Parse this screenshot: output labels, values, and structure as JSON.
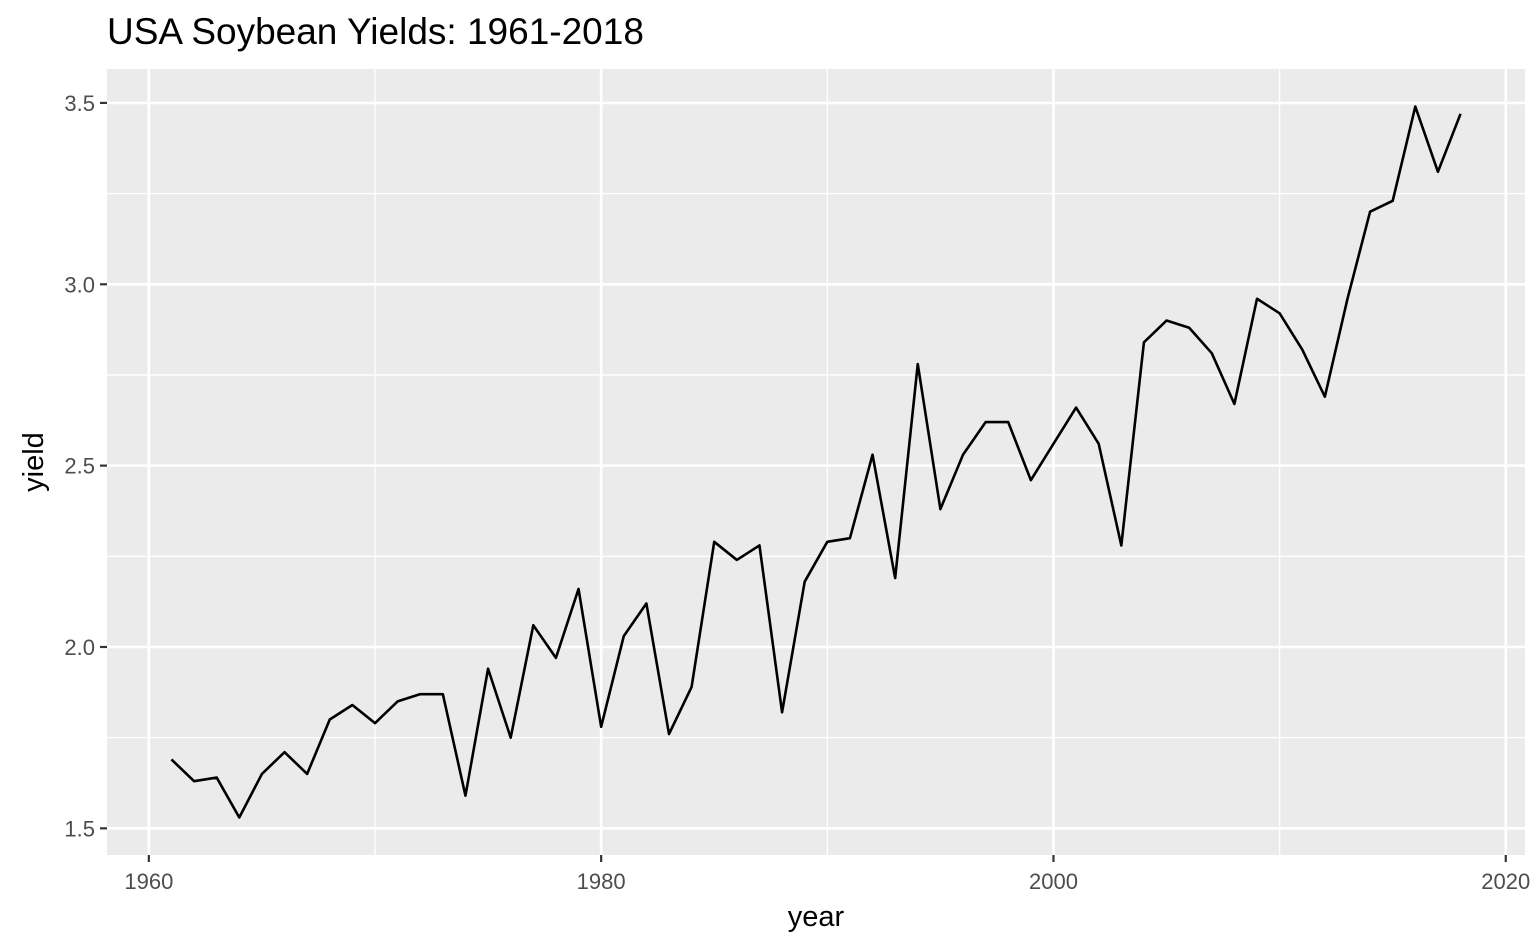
{
  "chart_data": {
    "type": "line",
    "title": "USA Soybean Yields: 1961-2018",
    "xlabel": "year",
    "ylabel": "yield",
    "xlim": [
      1958.15,
      2020.85
    ],
    "ylim": [
      1.4265,
      3.5935
    ],
    "x_ticks": [
      1960,
      1980,
      2000,
      2020
    ],
    "x_tick_labels": [
      "1960",
      "1980",
      "2000",
      "2020"
    ],
    "x_minor_ticks": [
      1970,
      1990,
      2010
    ],
    "y_ticks": [
      1.5,
      2.0,
      2.5,
      3.0,
      3.5
    ],
    "y_tick_labels": [
      "1.5",
      "2.0",
      "2.5",
      "3.0",
      "3.5"
    ],
    "y_minor_ticks": [
      1.75,
      2.25,
      2.75,
      3.25
    ],
    "grid": true,
    "legend": "none",
    "colors": {
      "panel_background": "#ebebeb",
      "grid_line": "#ffffff",
      "series_line": "#000000",
      "tick_label": "#4d4d4d",
      "tick_mark": "#333333"
    },
    "series": [
      {
        "x": [
          1961,
          1962,
          1963,
          1964,
          1965,
          1966,
          1967,
          1968,
          1969,
          1970,
          1971,
          1972,
          1973,
          1974,
          1975,
          1976,
          1977,
          1978,
          1979,
          1980,
          1981,
          1982,
          1983,
          1984,
          1985,
          1986,
          1987,
          1988,
          1989,
          1990,
          1991,
          1992,
          1993,
          1994,
          1995,
          1996,
          1997,
          1998,
          1999,
          2000,
          2001,
          2002,
          2003,
          2004,
          2005,
          2006,
          2007,
          2008,
          2009,
          2010,
          2011,
          2012,
          2013,
          2014,
          2015,
          2016,
          2017,
          2018
        ],
        "values": [
          1.69,
          1.63,
          1.64,
          1.53,
          1.65,
          1.71,
          1.65,
          1.8,
          1.84,
          1.79,
          1.85,
          1.87,
          1.87,
          1.59,
          1.94,
          1.75,
          2.06,
          1.97,
          2.16,
          1.78,
          2.03,
          2.12,
          1.76,
          1.89,
          2.29,
          2.24,
          2.28,
          1.82,
          2.18,
          2.29,
          2.3,
          2.53,
          2.19,
          2.78,
          2.38,
          2.53,
          2.62,
          2.62,
          2.46,
          2.56,
          2.66,
          2.56,
          2.28,
          2.84,
          2.9,
          2.88,
          2.81,
          2.67,
          2.96,
          2.92,
          2.82,
          2.69,
          2.96,
          3.2,
          3.23,
          3.49,
          3.31,
          3.47
        ]
      }
    ]
  }
}
